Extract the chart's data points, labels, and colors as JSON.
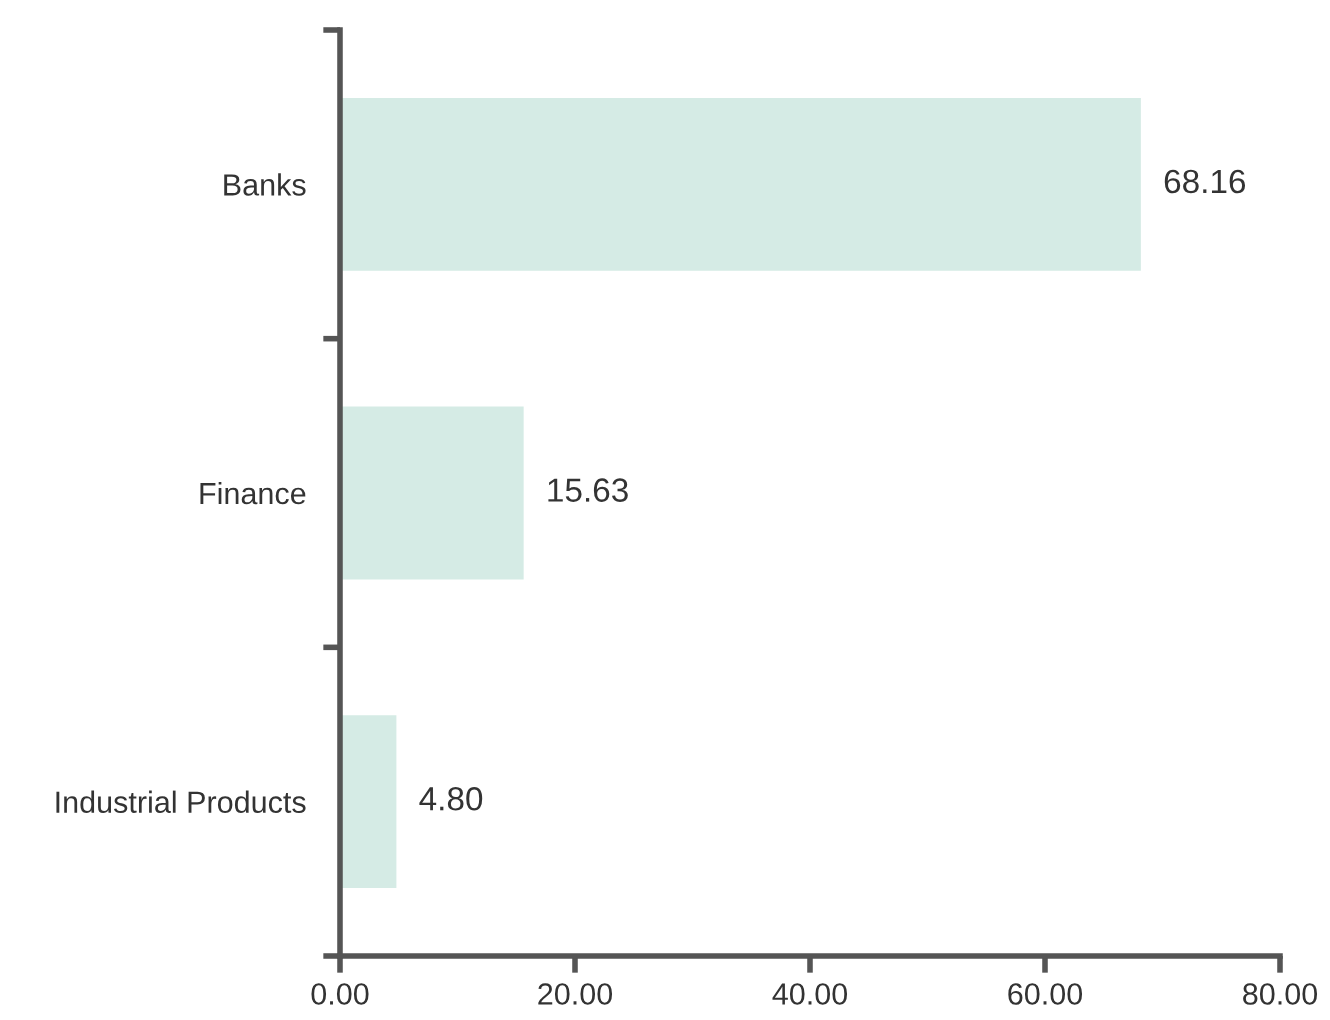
{
  "chart_data": {
    "type": "bar",
    "orientation": "horizontal",
    "categories": [
      "Banks",
      "Finance",
      "Industrial Products"
    ],
    "values": [
      68.16,
      15.63,
      4.8
    ],
    "value_labels": [
      "68.16",
      "15.63",
      "4.80"
    ],
    "color": "#d5ebe5",
    "xlim": [
      0,
      80
    ],
    "xticks": [
      {
        "value": 0,
        "label": "0.00"
      },
      {
        "value": 20,
        "label": "20.00"
      },
      {
        "value": 40,
        "label": "40.00"
      },
      {
        "value": 60,
        "label": "60.00"
      },
      {
        "value": 80,
        "label": "80.00"
      }
    ],
    "grid": false,
    "legend": false
  }
}
